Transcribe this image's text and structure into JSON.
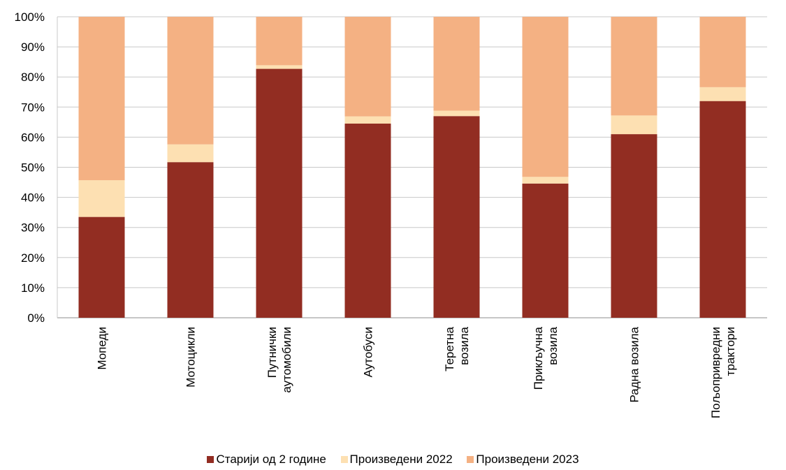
{
  "chart_data": {
    "type": "bar",
    "stacked": true,
    "percent": true,
    "categories": [
      [
        "Мопеди"
      ],
      [
        "Мотоцикли"
      ],
      [
        "Путнички",
        "аутомобили"
      ],
      [
        "Аутобуси"
      ],
      [
        "Теретна",
        "возила"
      ],
      [
        "Прикључна",
        "возила"
      ],
      [
        "Радна возила"
      ],
      [
        "Пољопривредни",
        "трактори"
      ]
    ],
    "series": [
      {
        "name": "Старији од 2 године",
        "color": "#922D22",
        "values": [
          33.5,
          51.7,
          82.7,
          64.5,
          67.0,
          44.6,
          61.0,
          72.0
        ]
      },
      {
        "name": "Произведени 2022",
        "color": "#FDE0B2",
        "values": [
          12.2,
          5.9,
          1.2,
          2.4,
          1.8,
          2.2,
          6.2,
          4.6
        ]
      },
      {
        "name": "Произведени 2023",
        "color": "#F4B183",
        "values": [
          54.3,
          42.4,
          16.1,
          33.1,
          31.2,
          53.2,
          32.8,
          23.4
        ]
      }
    ],
    "ylim": [
      0,
      100
    ],
    "yticks": [
      "0%",
      "10%",
      "20%",
      "30%",
      "40%",
      "50%",
      "60%",
      "70%",
      "80%",
      "90%",
      "100%"
    ],
    "grid": true,
    "legend_position": "bottom"
  }
}
